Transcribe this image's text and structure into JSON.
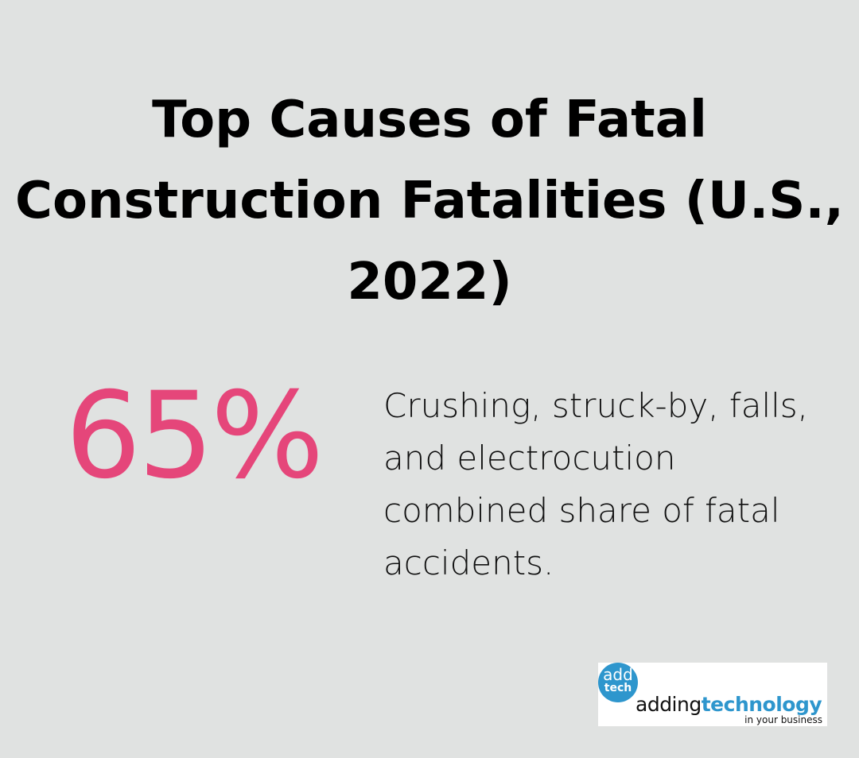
{
  "title": "Top Causes of Fatal Construction Fatalities (U.S., 2022)",
  "stat": "65%",
  "description": "Crushing, struck-by, falls, and electrocution combined share of fatal accidents.",
  "accent": "#e5467a",
  "logo": {
    "circle_top": "add",
    "circle_bottom": "tech",
    "brand_light": "adding",
    "brand_bold": "technology",
    "tagline": "in your business"
  }
}
